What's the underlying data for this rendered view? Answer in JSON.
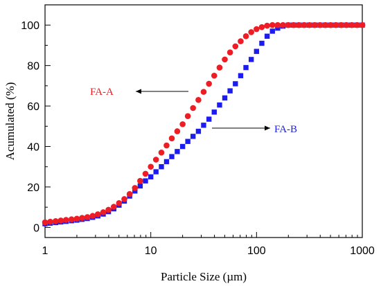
{
  "chart_data": {
    "type": "scatter",
    "xlabel": "Particle Size (µm)",
    "ylabel": "Acumulated (%)",
    "xscale": "log",
    "xlim": [
      1,
      1000
    ],
    "ylim": [
      -5,
      110
    ],
    "x_ticks": [
      1,
      10,
      100,
      1000
    ],
    "x_tick_labels": [
      "1",
      "10",
      "100",
      "1000"
    ],
    "y_ticks": [
      0,
      20,
      40,
      60,
      80,
      100
    ],
    "y_tick_labels": [
      "0",
      "20",
      "40",
      "60",
      "80",
      "100"
    ],
    "grid": false,
    "legend": "none",
    "series": [
      {
        "name": "FA-A",
        "marker": "circle",
        "color": "#ee1c24",
        "x": [
          1.0,
          1.12,
          1.26,
          1.41,
          1.58,
          1.78,
          2.0,
          2.24,
          2.51,
          2.82,
          3.16,
          3.55,
          3.98,
          4.47,
          5.01,
          5.62,
          6.31,
          7.08,
          7.94,
          8.91,
          10.0,
          11.2,
          12.6,
          14.1,
          15.8,
          17.8,
          20.0,
          22.4,
          25.1,
          28.2,
          31.6,
          35.5,
          39.8,
          44.7,
          50.1,
          56.2,
          63.1,
          70.8,
          79.4,
          89.1,
          100.0,
          112.2,
          125.9,
          141.3,
          158.5,
          177.8,
          199.5,
          223.9,
          251.2,
          281.8,
          316.2,
          354.8,
          398.1,
          446.7,
          501.2,
          562.3,
          631.0,
          707.9,
          794.3,
          891.3,
          1000.0
        ],
        "y": [
          2.5,
          2.8,
          3.1,
          3.4,
          3.7,
          4.0,
          4.3,
          4.7,
          5.1,
          5.7,
          6.5,
          7.5,
          8.7,
          10.2,
          12.0,
          14.0,
          16.5,
          19.5,
          23.0,
          26.5,
          30.0,
          33.5,
          37.0,
          40.5,
          44.0,
          47.5,
          51.0,
          55.0,
          59.0,
          63.0,
          67.0,
          71.0,
          75.0,
          79.0,
          83.0,
          86.5,
          89.5,
          92.0,
          94.5,
          96.5,
          98.0,
          99.0,
          99.7,
          100.0,
          100.0,
          100.0,
          100.0,
          100.0,
          100.0,
          100.0,
          100.0,
          100.0,
          100.0,
          100.0,
          100.0,
          100.0,
          100.0,
          100.0,
          100.0,
          100.0,
          100.0
        ]
      },
      {
        "name": "FA-B",
        "marker": "square",
        "color": "#1c1cee",
        "x": [
          1.0,
          1.12,
          1.26,
          1.41,
          1.58,
          1.78,
          2.0,
          2.24,
          2.51,
          2.82,
          3.16,
          3.55,
          3.98,
          4.47,
          5.01,
          5.62,
          6.31,
          7.08,
          7.94,
          8.91,
          10.0,
          11.2,
          12.6,
          14.1,
          15.8,
          17.8,
          20.0,
          22.4,
          25.1,
          28.2,
          31.6,
          35.5,
          39.8,
          44.7,
          50.1,
          56.2,
          63.1,
          70.8,
          79.4,
          89.1,
          100.0,
          112.2,
          125.9,
          141.3,
          158.5,
          177.8,
          199.5,
          223.9,
          251.2,
          281.8,
          316.2,
          354.8,
          398.1,
          446.7,
          501.2,
          562.3,
          631.0,
          707.9,
          794.3,
          891.3,
          1000.0
        ],
        "y": [
          1.8,
          2.1,
          2.4,
          2.7,
          3.0,
          3.3,
          3.6,
          4.0,
          4.4,
          5.0,
          5.7,
          6.6,
          7.8,
          9.2,
          11.0,
          13.0,
          15.5,
          18.0,
          20.5,
          23.0,
          25.0,
          27.5,
          30.0,
          32.5,
          35.0,
          37.5,
          40.0,
          42.5,
          45.0,
          47.5,
          50.5,
          53.5,
          57.0,
          60.5,
          64.0,
          67.5,
          71.0,
          75.0,
          79.0,
          83.0,
          87.0,
          91.0,
          94.5,
          97.0,
          98.5,
          99.5,
          100.0,
          100.0,
          100.0,
          100.0,
          100.0,
          100.0,
          100.0,
          100.0,
          100.0,
          100.0,
          100.0,
          100.0,
          100.0,
          100.0,
          100.0
        ]
      }
    ],
    "annotations": [
      {
        "text": "FA-A",
        "color": "#ee1c24",
        "arrow_direction": "left"
      },
      {
        "text": "FA-B",
        "color": "#1c1cee",
        "arrow_direction": "right"
      }
    ]
  }
}
